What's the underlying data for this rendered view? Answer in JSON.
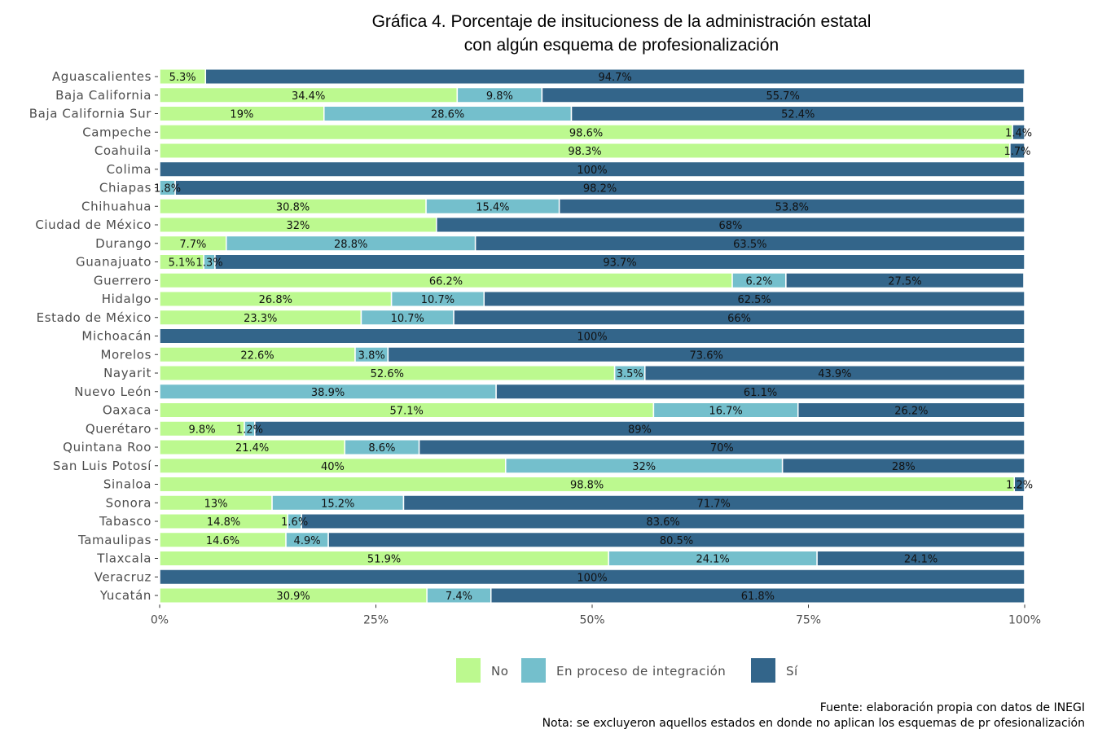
{
  "chart_data": {
    "type": "bar",
    "orientation": "horizontal",
    "stacked": true,
    "title": "Gráfica 4. Porcentaje de insitucioness de la administración estatal con algún esquema de profesionalización",
    "title_lines": [
      "Gráfica 4. Porcentaje de insitucioness de la administración estatal",
      "con algún esquema de profesionalización"
    ],
    "xlabel": "",
    "ylabel": "",
    "xlim": [
      0,
      100
    ],
    "x_ticks": [
      "0%",
      "25%",
      "50%",
      "75%",
      "100%"
    ],
    "x_tick_values": [
      0,
      25,
      50,
      75,
      100
    ],
    "grid": false,
    "legend_position": "bottom",
    "categories": [
      "Aguascalientes",
      "Baja California",
      "Baja California Sur",
      "Campeche",
      "Coahuila",
      "Colima",
      "Chiapas",
      "Chihuahua",
      "Ciudad de México",
      "Durango",
      "Guanajuato",
      "Guerrero",
      "Hidalgo",
      "Estado de México",
      "Michoacán",
      "Morelos",
      "Nayarit",
      "Nuevo León",
      "Oaxaca",
      "Querétaro",
      "Quintana Roo",
      "San Luis Potosí",
      "Sinaloa",
      "Sonora",
      "Tabasco",
      "Tamaulipas",
      "Tlaxcala",
      "Veracruz",
      "Yucatán"
    ],
    "series": [
      {
        "name": "No",
        "color": "#bcf98f",
        "values": [
          5.3,
          34.4,
          19,
          98.6,
          98.3,
          0,
          0,
          30.8,
          32,
          7.7,
          5.1,
          66.2,
          26.8,
          23.3,
          0,
          22.6,
          52.6,
          0,
          57.1,
          9.8,
          21.4,
          40,
          98.8,
          13,
          14.8,
          14.6,
          51.9,
          0,
          30.9
        ]
      },
      {
        "name": "En proceso de integración",
        "color": "#74bfcc",
        "values": [
          0,
          9.8,
          28.6,
          0,
          0,
          0,
          1.8,
          15.4,
          0,
          28.8,
          1.3,
          6.2,
          10.7,
          10.7,
          0,
          3.8,
          3.5,
          38.9,
          16.7,
          1.2,
          8.6,
          32,
          0,
          15.2,
          1.6,
          4.9,
          24.1,
          0,
          7.4
        ]
      },
      {
        "name": "Sí",
        "color": "#33658a",
        "values": [
          94.7,
          55.7,
          52.4,
          1.4,
          1.7,
          100,
          98.2,
          53.8,
          68,
          63.5,
          93.7,
          27.5,
          62.5,
          66,
          100,
          73.6,
          43.9,
          61.1,
          26.2,
          89,
          70,
          28,
          1.2,
          71.7,
          83.6,
          80.5,
          24.1,
          100,
          61.8
        ]
      }
    ],
    "data_labels": [
      [
        "5.3%",
        "",
        "94.7%"
      ],
      [
        "34.4%",
        "9.8%",
        "55.7%"
      ],
      [
        "19%",
        "28.6%",
        "52.4%"
      ],
      [
        "98.6%",
        "",
        "1.4%"
      ],
      [
        "98.3%",
        "",
        "1.7%"
      ],
      [
        "",
        "",
        "100%"
      ],
      [
        "",
        "1.8%",
        "98.2%"
      ],
      [
        "30.8%",
        "15.4%",
        "53.8%"
      ],
      [
        "32%",
        "",
        "68%"
      ],
      [
        "7.7%",
        "28.8%",
        "63.5%"
      ],
      [
        "5.1%",
        "1.3%",
        "93.7%"
      ],
      [
        "66.2%",
        "6.2%",
        "27.5%"
      ],
      [
        "26.8%",
        "10.7%",
        "62.5%"
      ],
      [
        "23.3%",
        "10.7%",
        "66%"
      ],
      [
        "",
        "",
        "100%"
      ],
      [
        "22.6%",
        "3.8%",
        "73.6%"
      ],
      [
        "52.6%",
        "3.5%",
        "43.9%"
      ],
      [
        "",
        "38.9%",
        "61.1%"
      ],
      [
        "57.1%",
        "16.7%",
        "26.2%"
      ],
      [
        "9.8%",
        "1.2%",
        "89%"
      ],
      [
        "21.4%",
        "8.6%",
        "70%"
      ],
      [
        "40%",
        "32%",
        "28%"
      ],
      [
        "98.8%",
        "",
        "1.2%"
      ],
      [
        "13%",
        "15.2%",
        "71.7%"
      ],
      [
        "14.8%",
        "1.6%",
        "83.6%"
      ],
      [
        "14.6%",
        "4.9%",
        "80.5%"
      ],
      [
        "51.9%",
        "24.1%",
        "24.1%"
      ],
      [
        "",
        "",
        "100%"
      ],
      [
        "30.9%",
        "7.4%",
        "61.8%"
      ]
    ],
    "legend": [
      "No",
      "En proceso de integración",
      "Sí"
    ],
    "caption_lines": [
      "Fuente: elaboración propia con datos de INEGI",
      "Nota: se excluyeron aquellos estados en donde no aplican los esquemas de pr ofesionalización"
    ]
  }
}
